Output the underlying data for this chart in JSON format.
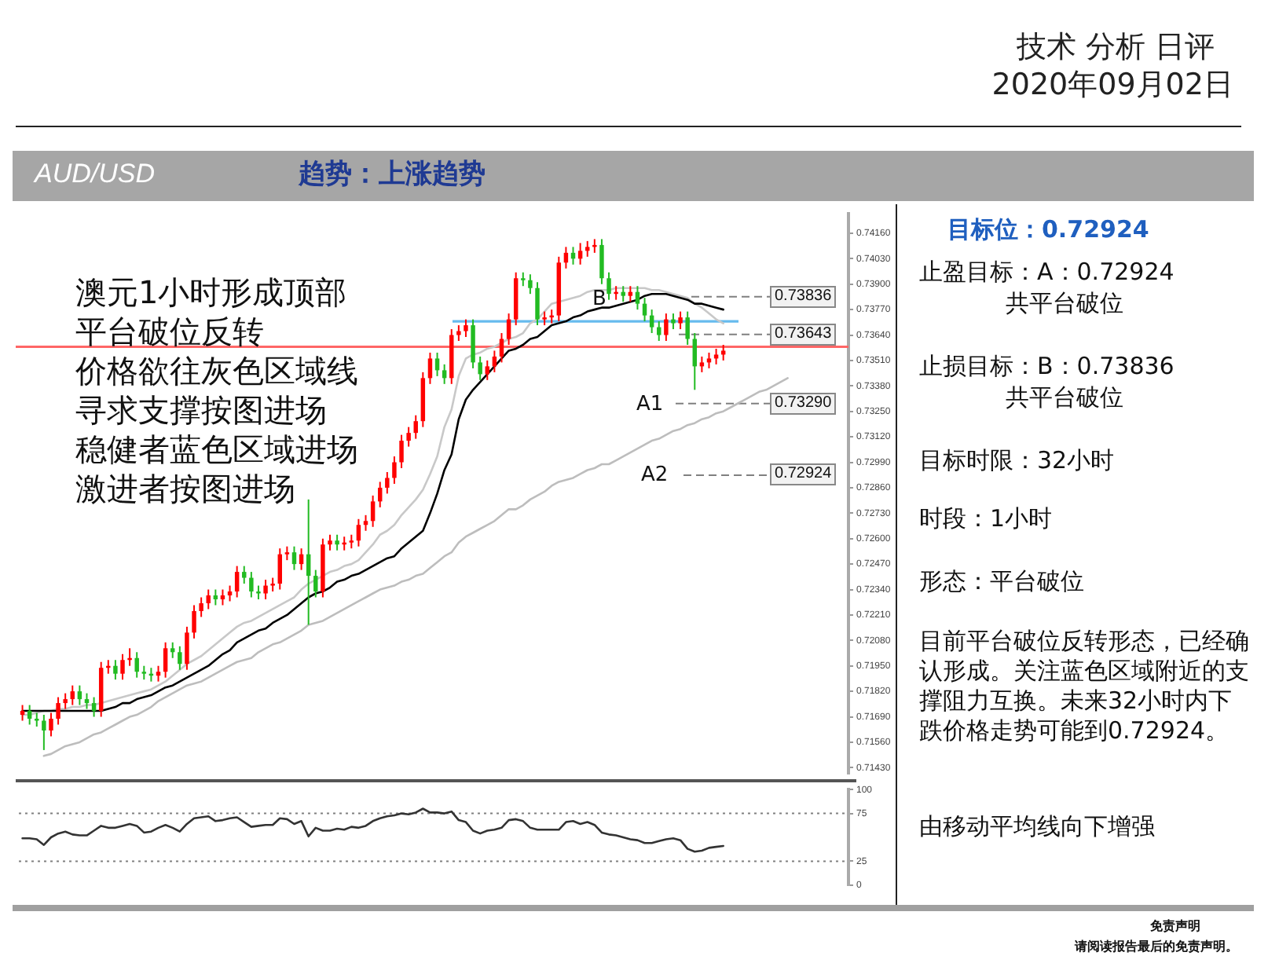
{
  "chart_data": [
    {
      "type": "other",
      "title": "技术 分析 日评",
      "subtitle": "2020年09月02日",
      "annotations": [
        "免责声明",
        "请阅读报告最后的免责声明。"
      ]
    },
    {
      "type": "candlestick",
      "title": "AUD/USD",
      "subtitle": "趋势：上涨趋势",
      "tick_labels": "y",
      "categories": [
        null,
        null,
        null,
        null,
        null,
        null,
        null,
        null,
        null,
        null,
        null,
        null,
        null,
        null,
        null,
        null,
        null,
        null,
        null,
        null,
        null,
        null,
        null,
        null,
        null,
        null,
        null,
        null,
        null,
        null,
        null,
        null,
        null,
        null,
        null,
        null,
        null,
        null,
        null,
        null,
        null,
        null,
        null,
        null,
        null,
        null,
        null,
        null,
        null,
        null,
        null,
        null,
        null,
        null,
        null,
        null,
        null,
        null,
        null,
        null,
        null,
        null,
        null,
        null,
        null,
        null,
        null,
        null,
        null,
        null,
        null,
        null,
        null,
        null,
        null,
        null,
        null,
        null,
        null,
        null,
        null,
        null,
        null,
        null,
        null,
        null,
        null,
        null,
        null,
        null,
        null,
        null,
        null,
        null,
        null,
        null,
        null,
        null,
        null,
        null,
        null,
        null,
        null,
        null,
        null,
        null,
        null,
        null,
        null,
        null,
        null,
        null,
        null,
        null,
        null,
        null
      ],
      "ohlc": [
        [
          0.717,
          0.7175,
          0.7167,
          0.7172
        ],
        [
          0.7172,
          0.7175,
          0.7165,
          0.7168
        ],
        [
          0.7168,
          0.7171,
          0.7164,
          0.7167
        ],
        [
          0.7167,
          0.717,
          0.7152,
          0.7162
        ],
        [
          0.7162,
          0.7171,
          0.7159,
          0.7168
        ],
        [
          0.7168,
          0.7179,
          0.7165,
          0.7176
        ],
        [
          0.7176,
          0.7181,
          0.7173,
          0.7178
        ],
        [
          0.7178,
          0.7185,
          0.7175,
          0.7182
        ],
        [
          0.7182,
          0.7185,
          0.7175,
          0.7178
        ],
        [
          0.7178,
          0.7181,
          0.7173,
          0.7176
        ],
        [
          0.7176,
          0.7179,
          0.7169,
          0.7172
        ],
        [
          0.7172,
          0.7197,
          0.7169,
          0.7194
        ],
        [
          0.7194,
          0.7198,
          0.7191,
          0.7195
        ],
        [
          0.7195,
          0.7198,
          0.7188,
          0.7191
        ],
        [
          0.7191,
          0.7201,
          0.7188,
          0.7198
        ],
        [
          0.7198,
          0.7204,
          0.7195,
          0.7199
        ],
        [
          0.7199,
          0.7202,
          0.7189,
          0.7192
        ],
        [
          0.7192,
          0.7195,
          0.7188,
          0.7191
        ],
        [
          0.7191,
          0.7194,
          0.7187,
          0.719
        ],
        [
          0.719,
          0.7195,
          0.7187,
          0.7192
        ],
        [
          0.7192,
          0.7207,
          0.7189,
          0.7204
        ],
        [
          0.7204,
          0.7207,
          0.7199,
          0.7202
        ],
        [
          0.7202,
          0.7205,
          0.7193,
          0.7196
        ],
        [
          0.7196,
          0.7215,
          0.7193,
          0.7212
        ],
        [
          0.7212,
          0.7226,
          0.7209,
          0.7223
        ],
        [
          0.7223,
          0.723,
          0.722,
          0.7227
        ],
        [
          0.7227,
          0.7234,
          0.7224,
          0.7231
        ],
        [
          0.7231,
          0.7234,
          0.7226,
          0.7229
        ],
        [
          0.7229,
          0.7234,
          0.7226,
          0.7231
        ],
        [
          0.7231,
          0.7236,
          0.7228,
          0.7233
        ],
        [
          0.7233,
          0.7246,
          0.723,
          0.7243
        ],
        [
          0.7243,
          0.7246,
          0.7237,
          0.724
        ],
        [
          0.724,
          0.7243,
          0.723,
          0.7233
        ],
        [
          0.7233,
          0.7236,
          0.7229,
          0.7232
        ],
        [
          0.7232,
          0.7239,
          0.7229,
          0.7236
        ],
        [
          0.7236,
          0.724,
          0.7233,
          0.7237
        ],
        [
          0.7237,
          0.7255,
          0.7234,
          0.7252
        ],
        [
          0.7252,
          0.7256,
          0.7249,
          0.7253
        ],
        [
          0.7253,
          0.7256,
          0.7244,
          0.7247
        ],
        [
          0.7247,
          0.7255,
          0.7244,
          0.7252
        ],
        [
          0.7252,
          0.728,
          0.7216,
          0.7241
        ],
        [
          0.7241,
          0.7244,
          0.723,
          0.7233
        ],
        [
          0.7233,
          0.726,
          0.723,
          0.7257
        ],
        [
          0.7257,
          0.7262,
          0.7254,
          0.7259
        ],
        [
          0.7259,
          0.7262,
          0.7254,
          0.7257
        ],
        [
          0.7257,
          0.7261,
          0.7254,
          0.7258
        ],
        [
          0.7258,
          0.7262,
          0.7255,
          0.7259
        ],
        [
          0.7259,
          0.727,
          0.7256,
          0.7267
        ],
        [
          0.7267,
          0.7272,
          0.7264,
          0.7269
        ],
        [
          0.7269,
          0.7282,
          0.7266,
          0.7279
        ],
        [
          0.7279,
          0.7289,
          0.7276,
          0.7286
        ],
        [
          0.7286,
          0.7294,
          0.7283,
          0.7291
        ],
        [
          0.7291,
          0.7302,
          0.7288,
          0.7299
        ],
        [
          0.7299,
          0.7313,
          0.7296,
          0.731
        ],
        [
          0.731,
          0.7317,
          0.7307,
          0.7314
        ],
        [
          0.7314,
          0.7323,
          0.7311,
          0.732
        ],
        [
          0.732,
          0.7345,
          0.7317,
          0.7342
        ],
        [
          0.7342,
          0.7355,
          0.7339,
          0.7352
        ],
        [
          0.7352,
          0.7355,
          0.7343,
          0.7346
        ],
        [
          0.7346,
          0.7349,
          0.7339,
          0.7342
        ],
        [
          0.7342,
          0.7367,
          0.7339,
          0.7364
        ],
        [
          0.7364,
          0.7369,
          0.7361,
          0.7366
        ],
        [
          0.7366,
          0.7372,
          0.7363,
          0.7369
        ],
        [
          0.7369,
          0.7372,
          0.7347,
          0.735
        ],
        [
          0.735,
          0.7353,
          0.7341,
          0.7344
        ],
        [
          0.7344,
          0.7351,
          0.7341,
          0.7348
        ],
        [
          0.7348,
          0.7356,
          0.7345,
          0.7353
        ],
        [
          0.7353,
          0.7365,
          0.735,
          0.7362
        ],
        [
          0.7362,
          0.7375,
          0.7359,
          0.7372
        ],
        [
          0.7372,
          0.7396,
          0.7369,
          0.7393
        ],
        [
          0.7393,
          0.7396,
          0.7389,
          0.7392
        ],
        [
          0.7392,
          0.7395,
          0.7385,
          0.7388
        ],
        [
          0.7388,
          0.7391,
          0.7369,
          0.7372
        ],
        [
          0.7372,
          0.7376,
          0.7369,
          0.7373
        ],
        [
          0.7373,
          0.7377,
          0.737,
          0.7374
        ],
        [
          0.7374,
          0.7404,
          0.7371,
          0.7401
        ],
        [
          0.7401,
          0.7409,
          0.7398,
          0.7406
        ],
        [
          0.7406,
          0.7409,
          0.74,
          0.7403
        ],
        [
          0.7403,
          0.7411,
          0.74,
          0.7407
        ],
        [
          0.7407,
          0.7412,
          0.7404,
          0.7409
        ],
        [
          0.7409,
          0.7413,
          0.7406,
          0.741
        ],
        [
          0.741,
          0.7413,
          0.739,
          0.7393
        ],
        [
          0.7393,
          0.7396,
          0.7382,
          0.7385
        ],
        [
          0.7385,
          0.7389,
          0.7382,
          0.7386
        ],
        [
          0.7386,
          0.7389,
          0.7381,
          0.7384
        ],
        [
          0.7384,
          0.7389,
          0.7381,
          0.7386
        ],
        [
          0.7386,
          0.7389,
          0.7377,
          0.738
        ],
        [
          0.738,
          0.7383,
          0.7371,
          0.7374
        ],
        [
          0.7374,
          0.7377,
          0.7365,
          0.7368
        ],
        [
          0.7368,
          0.7371,
          0.7361,
          0.7364
        ],
        [
          0.7364,
          0.7375,
          0.7361,
          0.7372
        ],
        [
          0.7372,
          0.7375,
          0.7367,
          0.737
        ],
        [
          0.737,
          0.7376,
          0.7367,
          0.7373
        ],
        [
          0.7373,
          0.7376,
          0.7359,
          0.7362
        ],
        [
          0.7362,
          0.7365,
          0.7336,
          0.7348
        ],
        [
          0.7348,
          0.7353,
          0.7345,
          0.735
        ],
        [
          0.735,
          0.7355,
          0.7347,
          0.7352
        ],
        [
          0.7352,
          0.7357,
          0.7349,
          0.7354
        ],
        [
          0.7354,
          0.7359,
          0.7351,
          0.7356
        ],
        null,
        null,
        null,
        null,
        null,
        null,
        null,
        null,
        null,
        null,
        null,
        null,
        null,
        null,
        null,
        null,
        null
      ],
      "colors": [
        "#ff0000",
        "#22bb22",
        "#22bb22",
        "#22bb22",
        "#ff0000",
        "#ff0000",
        "#ff0000",
        "#ff0000",
        "#22bb22",
        "#22bb22",
        "#22bb22",
        "#ff0000",
        "#ff0000",
        "#22bb22",
        "#ff0000",
        "#ff0000",
        "#22bb22",
        "#22bb22",
        "#22bb22",
        "#ff0000",
        "#ff0000",
        "#22bb22",
        "#22bb22",
        "#ff0000",
        "#ff0000",
        "#ff0000",
        "#ff0000",
        "#22bb22",
        "#ff0000",
        "#ff0000",
        "#ff0000",
        "#22bb22",
        "#22bb22",
        "#22bb22",
        "#ff0000",
        "#ff0000",
        "#ff0000",
        "#ff0000",
        "#22bb22",
        "#ff0000",
        "#22bb22",
        "#22bb22",
        "#ff0000",
        "#ff0000",
        "#22bb22",
        "#ff0000",
        "#ff0000",
        "#ff0000",
        "#ff0000",
        "#ff0000",
        "#ff0000",
        "#ff0000",
        "#ff0000",
        "#ff0000",
        "#ff0000",
        "#ff0000",
        "#ff0000",
        "#ff0000",
        "#22bb22",
        "#22bb22",
        "#ff0000",
        "#ff0000",
        "#ff0000",
        "#22bb22",
        "#22bb22",
        "#ff0000",
        "#ff0000",
        "#ff0000",
        "#ff0000",
        "#ff0000",
        "#22bb22",
        "#22bb22",
        "#22bb22",
        "#ff0000",
        "#ff0000",
        "#ff0000",
        "#ff0000",
        "#22bb22",
        "#ff0000",
        "#ff0000",
        "#ff0000",
        "#22bb22",
        "#22bb22",
        "#ff0000",
        "#22bb22",
        "#ff0000",
        "#22bb22",
        "#22bb22",
        "#22bb22",
        "#22bb22",
        "#ff0000",
        "#22bb22",
        "#ff0000",
        "#22bb22",
        "#22bb22",
        "#ff0000",
        "#ff0000",
        "#ff0000",
        "#ff0000",
        null,
        null,
        null,
        null,
        null,
        null,
        null,
        null,
        null,
        null,
        null,
        null,
        null,
        null,
        null,
        null,
        null
      ],
      "series": [
        {
          "type": "line",
          "color": "#000000",
          "values": [
            0.7172,
            0.7172,
            0.7172,
            0.7172,
            0.7172,
            0.7172,
            0.7172,
            0.7172,
            0.7172,
            0.7172,
            0.7172,
            0.7172,
            0.7173,
            0.7174,
            0.7176,
            0.7176,
            0.7178,
            0.7179,
            0.718,
            0.7182,
            0.7184,
            0.7185,
            0.7187,
            0.7189,
            0.7191,
            0.7193,
            0.7195,
            0.7198,
            0.7201,
            0.7203,
            0.7207,
            0.7209,
            0.7211,
            0.7213,
            0.7214,
            0.7217,
            0.7219,
            0.7221,
            0.7224,
            0.7227,
            0.723,
            0.7232,
            0.7233,
            0.7235,
            0.7238,
            0.7239,
            0.7241,
            0.7242,
            0.7244,
            0.7246,
            0.7248,
            0.725,
            0.7251,
            0.7255,
            0.7258,
            0.7261,
            0.7264,
            0.7273,
            0.7283,
            0.7295,
            0.7303,
            0.7321,
            0.7331,
            0.7336,
            0.734,
            0.7344,
            0.7348,
            0.7352,
            0.7356,
            0.7357,
            0.7359,
            0.7362,
            0.7363,
            0.7366,
            0.7369,
            0.737,
            0.7371,
            0.7373,
            0.7374,
            0.7376,
            0.7377,
            0.7378,
            0.7378,
            0.7379,
            0.738,
            0.7381,
            0.7382,
            0.7384,
            0.7385,
            0.7385,
            0.7385,
            0.7384,
            0.7383,
            0.7382,
            0.738,
            0.738,
            0.7379,
            0.7378,
            0.7377,
            null,
            null,
            null,
            null,
            null,
            null,
            null,
            null,
            null,
            null,
            null,
            null,
            null,
            null,
            null,
            null,
            null
          ]
        },
        {
          "type": "line",
          "color": "#c8c8c8",
          "values": [
            0.717,
            0.717,
            0.7171,
            0.7172,
            0.7172,
            0.7173,
            0.7173,
            0.7174,
            0.7174,
            0.7175,
            0.7175,
            0.7176,
            0.7177,
            0.7178,
            0.7179,
            0.718,
            0.7181,
            0.7182,
            0.7183,
            0.7185,
            0.7187,
            0.719,
            0.7193,
            0.7196,
            0.7198,
            0.72,
            0.7203,
            0.7206,
            0.7209,
            0.7212,
            0.7215,
            0.7217,
            0.7218,
            0.722,
            0.7222,
            0.7224,
            0.7226,
            0.7228,
            0.723,
            0.7234,
            0.7237,
            0.7239,
            0.7241,
            0.7243,
            0.7244,
            0.7246,
            0.7247,
            0.7249,
            0.7253,
            0.7257,
            0.7262,
            0.7264,
            0.7267,
            0.7272,
            0.7276,
            0.728,
            0.7285,
            0.7293,
            0.7302,
            0.7317,
            0.7326,
            0.7343,
            0.7352,
            0.7354,
            0.7355,
            0.7357,
            0.7358,
            0.736,
            0.7362,
            0.7363,
            0.7365,
            0.737,
            0.7372,
            0.7376,
            0.738,
            0.7381,
            0.7382,
            0.7383,
            0.7384,
            0.7386,
            0.7387,
            0.7387,
            0.7387,
            0.7388,
            0.7388,
            0.7388,
            0.7388,
            0.7388,
            0.7387,
            0.7387,
            0.7386,
            0.7385,
            0.7384,
            0.7383,
            0.738,
            0.7378,
            0.7375,
            0.7372,
            0.737,
            null,
            null,
            null,
            null,
            null,
            null,
            null,
            null,
            null,
            null,
            null,
            null,
            null,
            null,
            null,
            null,
            null
          ]
        },
        {
          "type": "line",
          "color": "#bdbdbd",
          "values": [
            null,
            null,
            null,
            0.7149,
            0.715,
            0.7152,
            0.7154,
            0.7155,
            0.7156,
            0.7158,
            0.716,
            0.7161,
            0.7163,
            0.7165,
            0.7167,
            0.7169,
            0.717,
            0.7172,
            0.7174,
            0.7177,
            0.7179,
            0.7181,
            0.7183,
            0.7185,
            0.7186,
            0.7187,
            0.7189,
            0.7191,
            0.7193,
            0.7195,
            0.7197,
            0.7198,
            0.7199,
            0.7202,
            0.7204,
            0.7206,
            0.7207,
            0.7209,
            0.7211,
            0.7213,
            0.7216,
            0.7217,
            0.7218,
            0.722,
            0.7222,
            0.7224,
            0.7226,
            0.7228,
            0.723,
            0.7232,
            0.7234,
            0.7235,
            0.7236,
            0.7238,
            0.7239,
            0.7241,
            0.7242,
            0.7245,
            0.7248,
            0.7251,
            0.7253,
            0.7258,
            0.7261,
            0.7263,
            0.7265,
            0.7267,
            0.7269,
            0.7272,
            0.7275,
            0.7275,
            0.7277,
            0.728,
            0.7282,
            0.7284,
            0.7287,
            0.7289,
            0.729,
            0.7291,
            0.7293,
            0.7295,
            0.7296,
            0.7298,
            0.7298,
            0.73,
            0.7302,
            0.7304,
            0.7306,
            0.7308,
            0.731,
            0.7311,
            0.7313,
            0.7315,
            0.7316,
            0.7318,
            0.7319,
            0.7321,
            0.7322,
            0.7324,
            0.7325,
            0.7327,
            0.7329,
            0.7331,
            0.7333,
            0.7335,
            0.7336,
            0.7338,
            0.734,
            0.7342,
            null,
            null,
            null,
            null,
            null,
            null,
            null,
            null
          ]
        }
      ],
      "ylim": [
        0.714,
        0.7426
      ],
      "yticks": [
        {
          "value": 0.7416,
          "label": "0.74160"
        },
        {
          "value": 0.7403,
          "label": "0.74030"
        },
        {
          "value": 0.739,
          "label": "0.73900"
        },
        {
          "value": 0.7377,
          "label": "0.73770"
        },
        {
          "value": 0.7364,
          "label": "0.73640"
        },
        {
          "value": 0.7351,
          "label": "0.73510"
        },
        {
          "value": 0.7338,
          "label": "0.73380"
        },
        {
          "value": 0.7325,
          "label": "0.73250"
        },
        {
          "value": 0.7312,
          "label": "0.73120"
        },
        {
          "value": 0.7299,
          "label": "0.72990"
        },
        {
          "value": 0.7286,
          "label": "0.72860"
        },
        {
          "value": 0.7273,
          "label": "0.72730"
        },
        {
          "value": 0.726,
          "label": "0.72600"
        },
        {
          "value": 0.7247,
          "label": "0.72470"
        },
        {
          "value": 0.7234,
          "label": "0.72340"
        },
        {
          "value": 0.7221,
          "label": "0.72210"
        },
        {
          "value": 0.7208,
          "label": "0.72080"
        },
        {
          "value": 0.7195,
          "label": "0.71950"
        },
        {
          "value": 0.7182,
          "label": "0.71820"
        },
        {
          "value": 0.7169,
          "label": "0.71690"
        },
        {
          "value": 0.7156,
          "label": "0.71560"
        },
        {
          "value": 0.7143,
          "label": "0.71430"
        }
      ],
      "ref_lines": [
        {
          "axis": "y",
          "value": 0.7371,
          "color": "#66bbee"
        },
        {
          "axis": "y",
          "value": 0.7358,
          "color": "#ff6666"
        },
        {
          "axis": "y",
          "value": 0.73836,
          "label": "0.73836",
          "color": "#808080",
          "line_style": "dashed"
        },
        {
          "axis": "y",
          "value": 0.73643,
          "label": "0.73643",
          "color": "#808080",
          "line_style": "dashed"
        },
        {
          "axis": "y",
          "value": 0.7329,
          "label": "0.73290",
          "color": "#808080",
          "line_style": "dashed"
        },
        {
          "axis": "y",
          "value": 0.72924,
          "label": "0.72924",
          "color": "#808080",
          "line_style": "dashed"
        }
      ],
      "annotations": [
        "澳元1小时形成顶部",
        "平台破位反转",
        "价格欲往灰色区域线",
        "寻求支撑按图进场",
        "稳健者蓝色区域进场",
        "激进者按图进场",
        "B",
        "A1",
        "A2"
      ]
    },
    {
      "type": "line",
      "tick_labels": "y",
      "categories": [
        null,
        null,
        null,
        null,
        null,
        null,
        null,
        null,
        null,
        null,
        null,
        null,
        null,
        null,
        null,
        null,
        null,
        null,
        null,
        null,
        null,
        null,
        null,
        null,
        null,
        null,
        null,
        null,
        null,
        null,
        null,
        null,
        null,
        null,
        null,
        null,
        null,
        null,
        null,
        null,
        null,
        null,
        null,
        null,
        null,
        null,
        null,
        null,
        null,
        null,
        null,
        null,
        null,
        null,
        null,
        null,
        null,
        null,
        null,
        null,
        null,
        null,
        null,
        null,
        null,
        null,
        null,
        null,
        null,
        null,
        null,
        null,
        null,
        null,
        null,
        null,
        null,
        null,
        null,
        null,
        null,
        null,
        null,
        null,
        null,
        null,
        null,
        null,
        null,
        null,
        null,
        null,
        null,
        null,
        null,
        null,
        null,
        null,
        null,
        null,
        null,
        null,
        null,
        null,
        null,
        null,
        null,
        null,
        null,
        null,
        null,
        null,
        null,
        null,
        null,
        null
      ],
      "series": [
        {
          "color": "#333333",
          "values": [
            49,
            49,
            48,
            42,
            50,
            54,
            56,
            53,
            52,
            52,
            57,
            62,
            60,
            60,
            62,
            64,
            62,
            55,
            56,
            60,
            63,
            60,
            56,
            64,
            70,
            71,
            72,
            67,
            68,
            70,
            71,
            66,
            61,
            62,
            63,
            63,
            70,
            69,
            64,
            67,
            51,
            60,
            57,
            57,
            59,
            58,
            61,
            60,
            62,
            67,
            70,
            72,
            73,
            75,
            74,
            76,
            80,
            76,
            76,
            75,
            77,
            68,
            66,
            57,
            54,
            57,
            58,
            60,
            68,
            69,
            67,
            60,
            58,
            58,
            58,
            58,
            66,
            67,
            64,
            66,
            63,
            55,
            53,
            52,
            50,
            48,
            47,
            44,
            44,
            46,
            48,
            49,
            47,
            38,
            35,
            36,
            39,
            40,
            41,
            null,
            null,
            null,
            null,
            null,
            null,
            null,
            null,
            null,
            null,
            null,
            null,
            null,
            null,
            null,
            null,
            null
          ]
        }
      ],
      "ylim": [
        0,
        100
      ],
      "yticks": [
        0,
        25,
        75,
        100
      ],
      "ref_lines": [
        {
          "axis": "y",
          "value": 75,
          "color": "#808080",
          "line_style": "dotted"
        },
        {
          "axis": "y",
          "value": 25,
          "color": "#808080",
          "line_style": "dotted"
        }
      ]
    },
    {
      "type": "other",
      "title": "目标位：0.72924",
      "annotations": [
        "止盈目标：A：0.72924",
        "共平台破位",
        "止损目标：B：0.73836",
        "共平台破位",
        "目标时限：32小时",
        "时段：1小时",
        "形态：平台破位",
        "目前平台破位反转形态，已经确认形成。关注蓝色区域附近的支撑阻力互换。未来32小时内下跌价格走势可能到0.72924。",
        "由移动平均线向下增强"
      ]
    }
  ]
}
